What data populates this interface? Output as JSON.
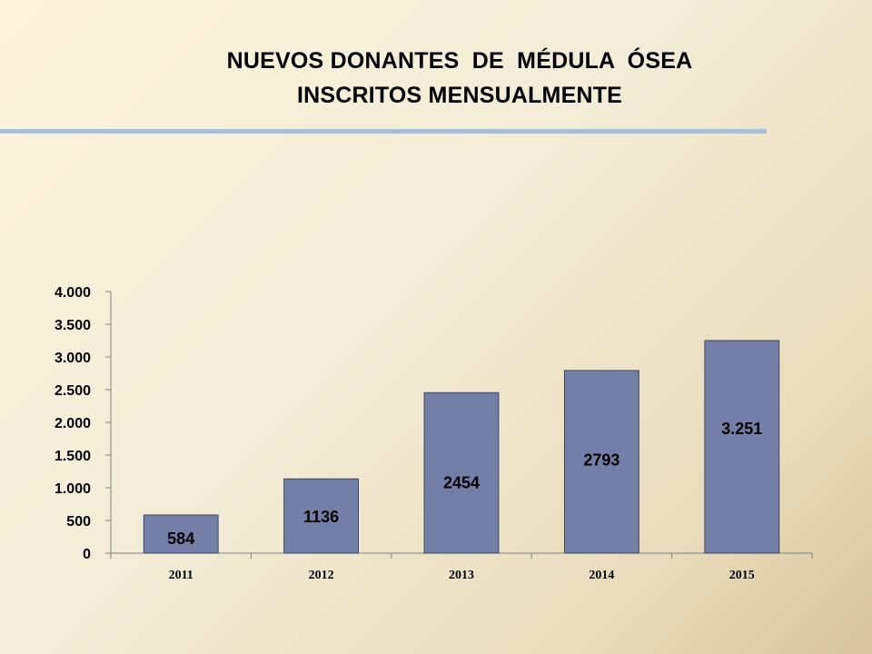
{
  "slide": {
    "title_lines": [
      "NUEVOS DONANTES  DE  MÉDULA  ÓSEA",
      "INSCRITOS MENSUALMENTE"
    ],
    "accent_rule_color": "#a9bfd6"
  },
  "chart_data": {
    "type": "bar",
    "title": "",
    "xlabel": "",
    "ylabel": "",
    "categories": [
      "2011",
      "2012",
      "2013",
      "2014",
      "2015"
    ],
    "values": [
      584,
      1136,
      2454,
      2793,
      3251
    ],
    "data_labels": [
      "584",
      "1136",
      "2454",
      "2793",
      "3.251"
    ],
    "ylim": [
      0,
      4000
    ],
    "yticks": [
      0,
      500,
      1000,
      1500,
      2000,
      2500,
      3000,
      3500,
      4000
    ],
    "ytick_labels": [
      "0",
      "500",
      "1.000",
      "1.500",
      "2.000",
      "2.500",
      "3.000",
      "3.500",
      "4.000"
    ],
    "bar_color": "#737fa6",
    "grid": false,
    "legend": "none"
  }
}
